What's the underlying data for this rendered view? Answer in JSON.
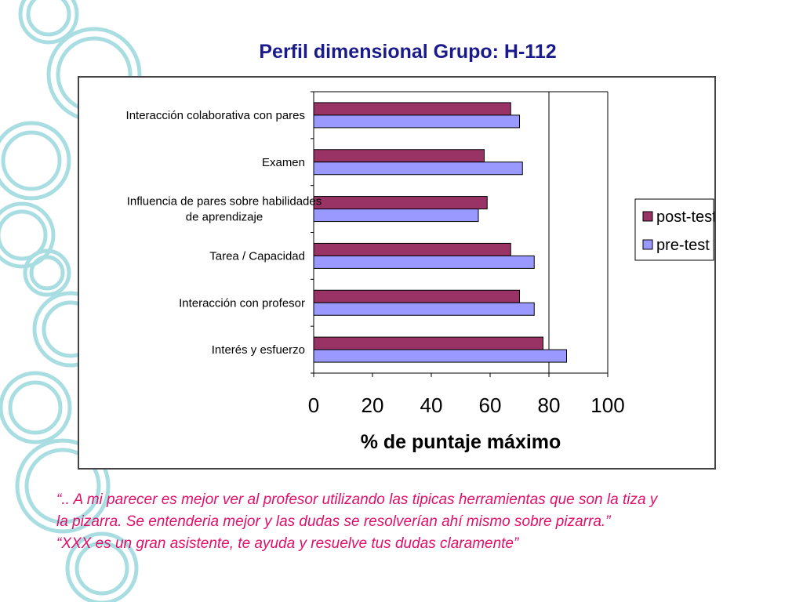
{
  "slide": {
    "title": "Perfil dimensional Grupo: H-112",
    "quote_lines": [
      "“.. A mi parecer es mejor ver al profesor utilizando las tipicas herramientas que son la tiza y",
      "la pizarra. Se entenderia mejor y las dudas se resolverían ahí mismo sobre pizarra.”",
      "“XXX es un gran asistente, te ayuda y resuelve tus dudas claramente”"
    ],
    "accent_color": "#1a1a8c",
    "quote_color": "#e0106a",
    "decor_color": "#a8dde2"
  },
  "chart_data": {
    "type": "bar",
    "orientation": "horizontal",
    "categories": [
      "Interacción colaborativa con pares",
      "Examen",
      "Influencia de pares sobre habilidades de aprendizaje",
      "Tarea / Capacidad",
      "Interacción con profesor",
      "Interés y esfuerzo"
    ],
    "category_label_lines": [
      [
        "Interacción colaborativa con pares"
      ],
      [
        "Examen"
      ],
      [
        "Influencia de pares sobre habilidades",
        "de aprendizaje"
      ],
      [
        "Tarea / Capacidad"
      ],
      [
        "Interacción con profesor"
      ],
      [
        "Interés y esfuerzo"
      ]
    ],
    "series": [
      {
        "name": "post-test",
        "color": "#993366",
        "values": [
          67,
          58,
          59,
          67,
          70,
          78
        ]
      },
      {
        "name": "pre-test",
        "color": "#9999ff",
        "values": [
          70,
          71,
          56,
          75,
          75,
          86
        ]
      }
    ],
    "xlabel": "% de puntaje máximo",
    "ylabel": "",
    "xlim": [
      0,
      100
    ],
    "xticks": [
      "0",
      "20",
      "40",
      "60",
      "80",
      "100"
    ],
    "reference_line": 80,
    "legend": "right"
  }
}
